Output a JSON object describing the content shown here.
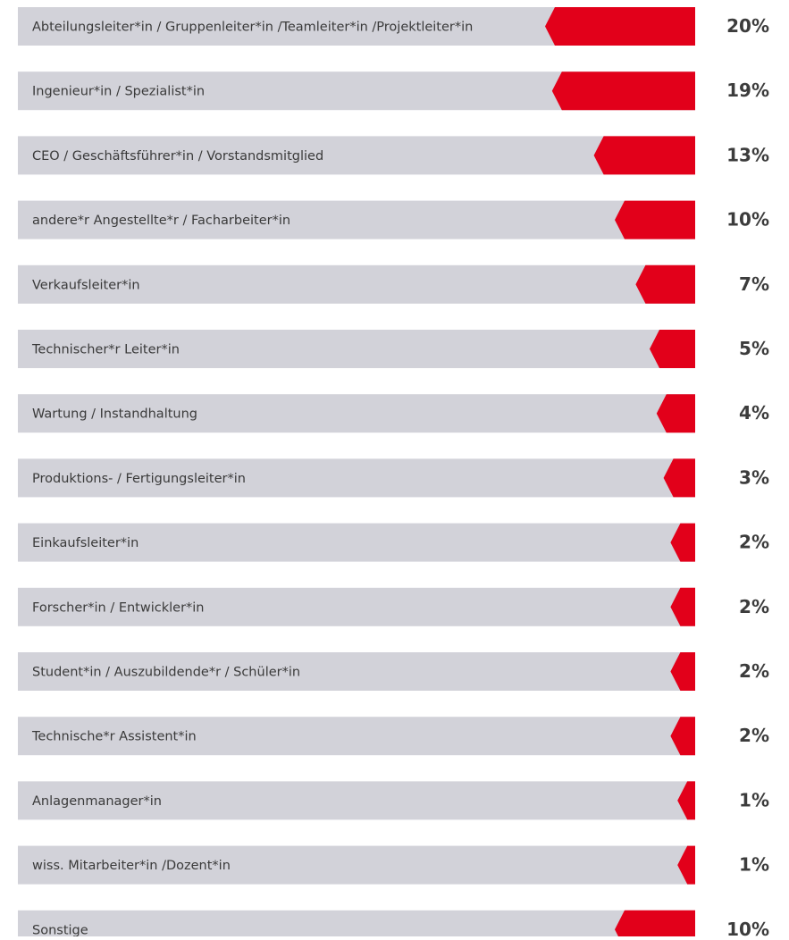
{
  "chart_data": {
    "type": "bar",
    "orientation": "horizontal",
    "color": "#e2001a",
    "categories": [
      "Abteilungsleiter*in / Gruppenleiter*in /Teamleiter*in /Projektleiter*in",
      "Ingenieur*in / Spezialist*in",
      "CEO / Geschäftsführer*in / Vorstandsmitglied",
      "andere*r Angestellte*r / Facharbeiter*in",
      "Verkaufsleiter*in",
      "Technischer*r Leiter*in",
      "Wartung / Instandhaltung",
      "Produktions- / Fertigungsleiter*in",
      "Einkaufsleiter*in",
      "Forscher*in / Entwickler*in",
      "Student*in / Auszubildende*r / Schüler*in",
      "Technische*r Assistent*in",
      "Anlagenmanager*in",
      "wiss. Mitarbeiter*in /Dozent*in",
      "Sonstige"
    ],
    "values": [
      20,
      19,
      13,
      10,
      7,
      5,
      4,
      3,
      2,
      2,
      2,
      2,
      1,
      1,
      10
    ],
    "value_labels": [
      "20%",
      "19%",
      "13%",
      "10%",
      "7%",
      "5%",
      "4%",
      "3%",
      "2%",
      "2%",
      "2%",
      "2%",
      "1%",
      "1%",
      "10%"
    ]
  }
}
